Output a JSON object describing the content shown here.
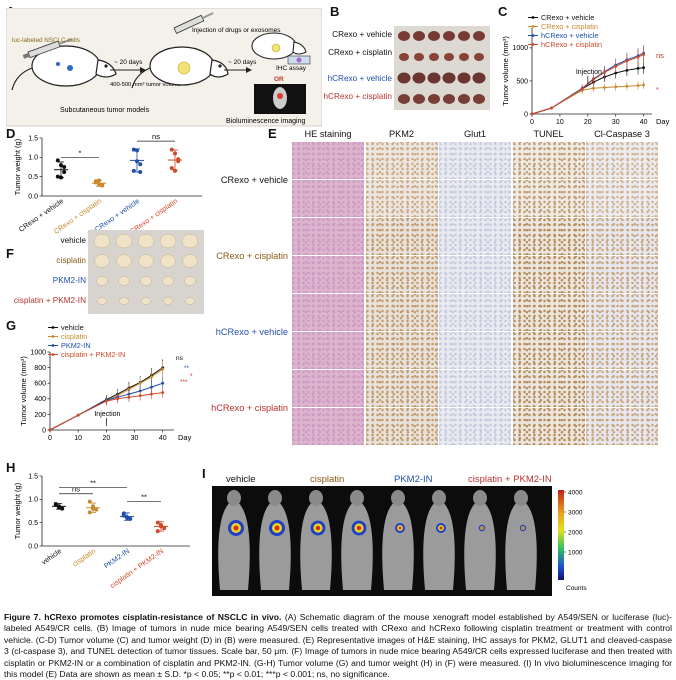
{
  "panels": {
    "A": {
      "label": "A",
      "texts": {
        "luc": "luc-labeled NSCLC cells",
        "days1": "~ 20 days",
        "vol": "400-500 mm³ tumor volume",
        "inj": "Injection of drugs or exosomes",
        "days2": "~ 20 days",
        "ihc": "IHC assay",
        "or": "OR",
        "sub": "Subcutaneous tumor models",
        "bio": "Bioluminescence imaging"
      }
    },
    "B": {
      "label": "B",
      "rows": [
        "CRexo + vehicle",
        "CRexo + cisplatin",
        "hCRexo + vehicle",
        "hCRexo + cisplatin"
      ],
      "row_colors": [
        "#111111",
        "#111111",
        "#1f4fa8",
        "#b8322e"
      ]
    },
    "C": {
      "label": "C"
    },
    "D": {
      "label": "D"
    },
    "E": {
      "label": "E",
      "columns": [
        "HE staining",
        "PKM2",
        "Glut1",
        "TUNEL",
        "Cl-Caspase 3"
      ],
      "rows": [
        "CRexo + vehicle",
        "CRexo + cisplatin",
        "hCRexo + vehicle",
        "hCRexo + cisplatin"
      ],
      "row_colors": [
        "#111111",
        "#8a5a16",
        "#1f4fa8",
        "#b8322e"
      ]
    },
    "F": {
      "label": "F",
      "rows": [
        "vehicle",
        "cisplatin",
        "PKM2-IN",
        "cisplatin + PKM2-IN"
      ],
      "row_colors": [
        "#111111",
        "#8a5a16",
        "#1f4fa8",
        "#b8322e"
      ]
    },
    "G": {
      "label": "G"
    },
    "H": {
      "label": "H"
    },
    "I": {
      "label": "I",
      "groups": [
        "vehicle",
        "cisplatin",
        "PKM2-IN",
        "cisplatin + PKM2-IN"
      ],
      "group_colors": [
        "#111111",
        "#8a5a16",
        "#1f4fa8",
        "#b8322e"
      ],
      "colorbar_ticks": [
        "4000",
        "3000",
        "2000",
        "1000"
      ],
      "colorbar_label": "Counts"
    }
  },
  "chart_data": [
    {
      "panel": "C",
      "type": "line",
      "xlabel": "Day",
      "ylabel": "Tumor volume (mm³)",
      "xlim": [
        0,
        43
      ],
      "ylim": [
        0,
        1300
      ],
      "xticks": [
        "0",
        "10",
        "20",
        "30",
        "40"
      ],
      "yticks": [
        "0",
        "500",
        "1000"
      ],
      "legend_position": "top",
      "annotation": "Injection",
      "significance": [
        "ns",
        "*"
      ],
      "x": [
        0,
        7,
        18,
        22,
        26,
        30,
        34,
        38,
        40
      ],
      "series": [
        {
          "name": "CRexo + vehicle",
          "color": "#111111",
          "values": [
            0,
            90,
            380,
            480,
            560,
            620,
            660,
            690,
            700
          ]
        },
        {
          "name": "CRexo + cisplatin",
          "color": "#c98a2e",
          "values": [
            0,
            90,
            360,
            390,
            400,
            410,
            420,
            430,
            440
          ]
        },
        {
          "name": "hCRexo + vehicle",
          "color": "#1f4fa8",
          "values": [
            0,
            90,
            390,
            530,
            640,
            740,
            820,
            880,
            920
          ]
        },
        {
          "name": "hCRexo + cisplatin",
          "color": "#d04a2a",
          "values": [
            0,
            90,
            380,
            520,
            630,
            720,
            800,
            860,
            900
          ]
        }
      ]
    },
    {
      "panel": "D",
      "type": "scatter",
      "ylabel": "Tumor weight (g)",
      "ylim": [
        0.0,
        1.5
      ],
      "yticks": [
        "0.0",
        "0.5",
        "1.0",
        "1.5"
      ],
      "significance": [
        "*",
        "ns"
      ],
      "categories": [
        "CRexo + vehicle",
        "CRexo + cisplatin",
        "hCRexo + vehicle",
        "hCRexo + cisplatin"
      ],
      "colors": [
        "#111111",
        "#c98a2e",
        "#1f4fa8",
        "#d04a2a"
      ],
      "means": [
        0.68,
        0.33,
        0.92,
        0.93
      ],
      "sds": [
        0.2,
        0.08,
        0.3,
        0.26
      ],
      "points": [
        [
          0.92,
          0.8,
          0.62,
          0.5,
          0.48,
          0.75
        ],
        [
          0.38,
          0.3,
          0.27,
          0.35,
          0.4,
          0.28
        ],
        [
          1.2,
          1.18,
          0.82,
          0.65,
          0.9,
          0.62
        ],
        [
          1.2,
          1.1,
          0.9,
          0.72,
          0.65,
          0.95
        ]
      ]
    },
    {
      "panel": "G",
      "type": "line",
      "xlabel": "Day",
      "ylabel": "Tumor volume (mm³)",
      "xlim": [
        0,
        44
      ],
      "ylim": [
        0,
        1000
      ],
      "xticks": [
        "0",
        "10",
        "20",
        "30",
        "40"
      ],
      "yticks": [
        "0",
        "200",
        "400",
        "600",
        "800",
        "1000"
      ],
      "legend_position": "top-left",
      "annotation": "Injection",
      "significance": [
        "ns",
        "**",
        "*",
        "***"
      ],
      "x": [
        0,
        10,
        20,
        24,
        28,
        32,
        36,
        40
      ],
      "series": [
        {
          "name": "vehicle",
          "color": "#111111",
          "values": [
            0,
            190,
            390,
            460,
            540,
            610,
            700,
            800
          ]
        },
        {
          "name": "cisplatin",
          "color": "#c98a2e",
          "values": [
            0,
            190,
            380,
            440,
            520,
            600,
            680,
            780
          ]
        },
        {
          "name": "PKM2-IN",
          "color": "#1f4fa8",
          "values": [
            0,
            190,
            380,
            420,
            460,
            500,
            550,
            600
          ]
        },
        {
          "name": "cisplatin + PKM2-IN",
          "color": "#d04a2a",
          "values": [
            0,
            190,
            370,
            400,
            420,
            440,
            460,
            480
          ]
        }
      ]
    },
    {
      "panel": "H",
      "type": "scatter",
      "ylabel": "Tumor weight (g)",
      "ylim": [
        0.0,
        1.5
      ],
      "yticks": [
        "0.0",
        "0.5",
        "1.0",
        "1.5"
      ],
      "significance": [
        "ns",
        "**",
        "**"
      ],
      "categories": [
        "vehicle",
        "cisplatin",
        "PKM2-IN",
        "cisplatin + PKM2-IN"
      ],
      "colors": [
        "#111111",
        "#c98a2e",
        "#1f4fa8",
        "#d04a2a"
      ],
      "means": [
        0.85,
        0.82,
        0.63,
        0.42
      ],
      "sds": [
        0.06,
        0.1,
        0.08,
        0.1
      ],
      "points": [
        [
          0.9,
          0.85,
          0.8,
          0.88,
          0.82
        ],
        [
          0.95,
          0.85,
          0.78,
          0.72,
          0.8
        ],
        [
          0.7,
          0.62,
          0.58,
          0.65,
          0.6
        ],
        [
          0.5,
          0.45,
          0.38,
          0.32,
          0.42
        ]
      ]
    }
  ],
  "caption": {
    "title": "Figure 7. hCRexo promotes cisplatin-resistance of NSCLC in vivo.",
    "body": "(A) Schematic diagram of the mouse xenograft model established by A549/SEN or luciferase (luc)-labeled A549/CR cells. (B) Image of tumors in nude mice bearing A549/SEN cells treated with CRexo and hCRexo following cisplatin treatment or treatment with control vehicle. (C-D) Tumor volume (C) and tumor weight (D) in (B) were measured. (E) Representative images of H&E staining, IHC assays for PKM2, GLUT1 and cleaved-caspase 3 (cl-caspase 3), and TUNEL detection of tumor tissues. Scale bar, 50 μm. (F) Image of tumors in nude mice bearing A549/CR cells expressed luciferase and then treated with cisplatin or PKM2-IN or a combination of cisplatin and PKM2-IN. (G-H) Tumor volume (G) and tumor weight (H) in (F) were measured. (I) In vivo bioluminescence imaging for this model (E) Data are shown as mean ± S.D. *p < 0.05; **p < 0.01; ***p < 0.001; ns, no significance."
  }
}
